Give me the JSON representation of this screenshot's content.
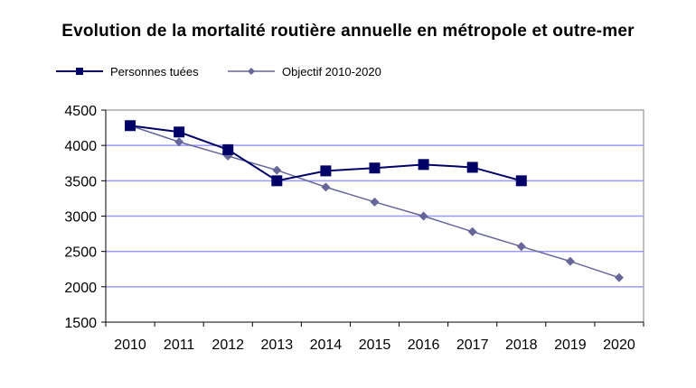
{
  "chart_data": {
    "type": "line",
    "title": "Evolution  de la mortalité routière annuelle en métropole et outre-mer",
    "xlabel": "",
    "ylabel": "",
    "ylim": [
      1500,
      4500
    ],
    "yticks": [
      "1500",
      "2000",
      "2500",
      "3000",
      "3500",
      "4000",
      "4500"
    ],
    "categories": [
      "2010",
      "2011",
      "2012",
      "2013",
      "2014",
      "2015",
      "2016",
      "2017",
      "2018",
      "2019",
      "2020"
    ],
    "grid": true,
    "legend_position": "top-left",
    "series": [
      {
        "name": "Personnes tuées",
        "marker": "square",
        "color": "#000066",
        "values": [
          4280,
          4190,
          3940,
          3500,
          3640,
          3680,
          3730,
          3690,
          3500,
          null,
          null
        ]
      },
      {
        "name": "Objectif 2010-2020",
        "marker": "diamond",
        "color": "#666699",
        "values": [
          4280,
          4050,
          3850,
          3650,
          3410,
          3200,
          3000,
          2780,
          2570,
          2360,
          2130
        ]
      }
    ]
  }
}
